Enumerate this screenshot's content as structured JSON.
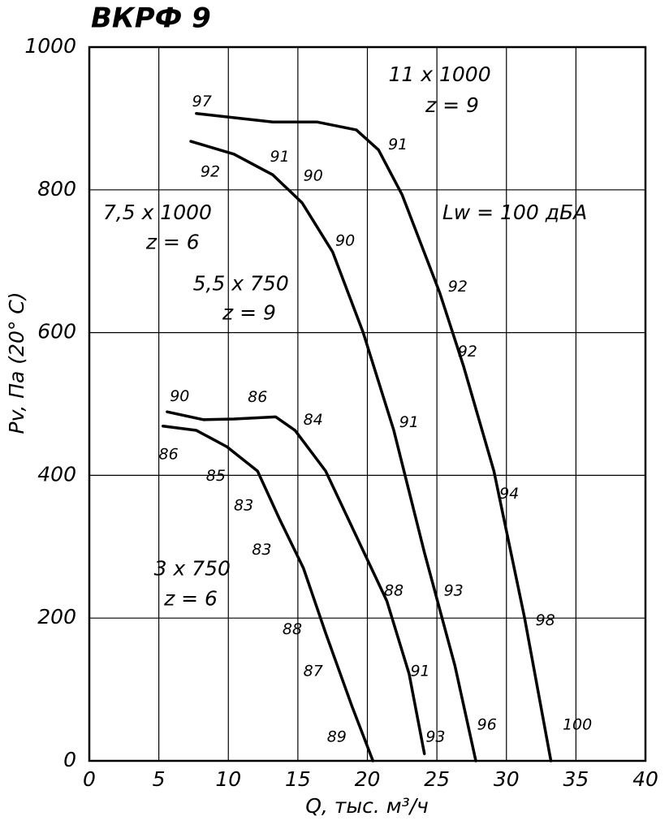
{
  "chart_data": {
    "type": "line",
    "title": "ВКРФ 9",
    "x_label": "Q, тыс. м³/ч",
    "y_label": "Pv, Па (20° C)",
    "xlim": [
      0,
      40
    ],
    "ylim": [
      0,
      1000
    ],
    "xticks": [
      0,
      5,
      10,
      15,
      20,
      25,
      30,
      35,
      40
    ],
    "yticks": [
      0,
      200,
      400,
      600,
      800,
      1000
    ],
    "grid": true,
    "series": [
      {
        "color": "#000000",
        "x": [
          7.7,
          13.2,
          16.4,
          19.2,
          20.8,
          22.5,
          25.2,
          26.9,
          29.1,
          31.3,
          33.2
        ],
        "values": [
          907,
          895,
          895,
          884,
          856,
          793,
          656,
          554,
          406,
          201,
          0
        ]
      },
      {
        "color": "#000000",
        "x": [
          7.3,
          10.4,
          13.2,
          15.3,
          17.5,
          19.7,
          21.9,
          24.1,
          26.3,
          27.8
        ],
        "values": [
          868,
          850,
          821,
          782,
          713,
          600,
          463,
          292,
          133,
          0
        ]
      },
      {
        "color": "#000000",
        "x": [
          5.6,
          8.2,
          10.4,
          13.4,
          14.8,
          17.0,
          19.2,
          21.4,
          23.0,
          24.1
        ],
        "values": [
          489,
          478,
          479,
          482,
          463,
          406,
          315,
          224,
          122,
          10
        ]
      },
      {
        "color": "#000000",
        "x": [
          5.3,
          7.7,
          9.9,
          12.1,
          13.7,
          15.4,
          17.0,
          18.9,
          20.4
        ],
        "values": [
          469,
          463,
          440,
          406,
          338,
          270,
          179,
          76,
          0
        ]
      }
    ],
    "curve_labels": [
      {
        "text": "11 x 1000",
        "x": 25.2,
        "y": 960
      },
      {
        "text": "z = 9",
        "x": 26.1,
        "y": 917
      },
      {
        "text": "7,5 x 1000",
        "x": 4.9,
        "y": 767
      },
      {
        "text": "z = 6",
        "x": 6.0,
        "y": 725
      },
      {
        "text": "5,5 x 750",
        "x": 10.9,
        "y": 667
      },
      {
        "text": "z = 9",
        "x": 11.5,
        "y": 626
      },
      {
        "text": "3 x 750",
        "x": 7.4,
        "y": 268
      },
      {
        "text": "z = 6",
        "x": 7.3,
        "y": 226
      },
      {
        "text": "Lw = 100 дБА",
        "x": 30.6,
        "y": 767
      }
    ],
    "annotations": [
      {
        "text": "97",
        "x": 8.1,
        "y": 923
      },
      {
        "text": "92",
        "x": 8.7,
        "y": 825
      },
      {
        "text": "91",
        "x": 13.7,
        "y": 846
      },
      {
        "text": "90",
        "x": 16.1,
        "y": 819
      },
      {
        "text": "91",
        "x": 22.2,
        "y": 863
      },
      {
        "text": "90",
        "x": 18.4,
        "y": 728
      },
      {
        "text": "92",
        "x": 26.5,
        "y": 664
      },
      {
        "text": "92",
        "x": 27.2,
        "y": 573
      },
      {
        "text": "91",
        "x": 23.0,
        "y": 474
      },
      {
        "text": "94",
        "x": 30.2,
        "y": 374
      },
      {
        "text": "93",
        "x": 26.2,
        "y": 238
      },
      {
        "text": "98",
        "x": 32.8,
        "y": 196
      },
      {
        "text": "96",
        "x": 28.6,
        "y": 50
      },
      {
        "text": "100",
        "x": 35.1,
        "y": 50
      },
      {
        "text": "90",
        "x": 6.5,
        "y": 510
      },
      {
        "text": "86",
        "x": 12.1,
        "y": 509
      },
      {
        "text": "84",
        "x": 16.1,
        "y": 477
      },
      {
        "text": "86",
        "x": 5.7,
        "y": 429
      },
      {
        "text": "85",
        "x": 9.1,
        "y": 399
      },
      {
        "text": "83",
        "x": 11.1,
        "y": 357
      },
      {
        "text": "83",
        "x": 12.4,
        "y": 295
      },
      {
        "text": "88",
        "x": 21.9,
        "y": 238
      },
      {
        "text": "88",
        "x": 14.6,
        "y": 184
      },
      {
        "text": "87",
        "x": 16.1,
        "y": 125
      },
      {
        "text": "91",
        "x": 23.8,
        "y": 125
      },
      {
        "text": "89",
        "x": 17.8,
        "y": 33
      },
      {
        "text": "93",
        "x": 24.9,
        "y": 33
      }
    ]
  }
}
